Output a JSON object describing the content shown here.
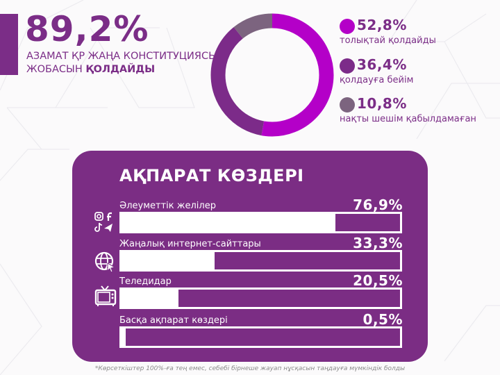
{
  "header": {
    "headline": "89,2%",
    "subline_1": "АЗАМАТ ҚР ЖАҢА КОНСТИТУЦИЯСЫ",
    "subline_2_regular": "ЖОБАСЫН ",
    "subline_2_bold": "ҚОЛДАЙДЫ",
    "accent_color": "#7b2d87"
  },
  "donut": {
    "segments": [
      {
        "value": "52,8%",
        "label": "толықтай қолдайды",
        "color": "#b400c8",
        "pct": 52.8
      },
      {
        "value": "36,4%",
        "label": "қолдауға бейім",
        "color": "#7c2b89",
        "pct": 36.4
      },
      {
        "value": "10,8%",
        "label": "нақты шешім қабылдамаған",
        "color": "#7c647f",
        "pct": 10.8
      }
    ]
  },
  "sources": {
    "title": "АҚПАРАТ КӨЗДЕРІ",
    "card_color": "#7b2d84",
    "rows": [
      {
        "label": "Әлеуметтік желілер",
        "value": "76,9%",
        "pct": 76.9,
        "icon": "social-media-icons"
      },
      {
        "label": "Жаңалық интернет-сайттары",
        "value": "33,3%",
        "pct": 33.3,
        "icon": "globe-cursor-icon"
      },
      {
        "label": "Теледидар",
        "value": "20,5%",
        "pct": 20.5,
        "icon": "tv-icon"
      },
      {
        "label": "Басқа ақпарат көздері",
        "value": "0,5%",
        "pct": 0.5,
        "icon": ""
      }
    ]
  },
  "footnote": "*Көрсеткіштер 100%-ға тең емес, себебі бірнеше жауап нұсқасын таңдауға мүмкіндік болды",
  "chart_data": [
    {
      "type": "pie",
      "title": "89,2% азамат ҚР жаңа Конституциясы жобасын қолдайды",
      "categories": [
        "толықтай қолдайды",
        "қолдауға бейім",
        "нақты шешім қабылдамаған"
      ],
      "values": [
        52.8,
        36.4,
        10.8
      ],
      "colors": [
        "#b400c8",
        "#7c2b89",
        "#7c647f"
      ],
      "style": "donut",
      "legend_position": "right"
    },
    {
      "type": "bar",
      "title": "АҚПАРАТ КӨЗДЕРІ",
      "orientation": "horizontal",
      "categories": [
        "Әлеуметтік желілер",
        "Жаңалық интернет-сайттары",
        "Теледидар",
        "Басқа ақпарат көздері"
      ],
      "values": [
        76.9,
        33.3,
        20.5,
        0.5
      ],
      "xlabel": "",
      "ylabel": "",
      "xlim": [
        0,
        100
      ],
      "annotation": "*Көрсеткіштер 100%-ға тең емес, себебі бірнеше жауап нұсқасын таңдауға мүмкіндік болды"
    }
  ]
}
